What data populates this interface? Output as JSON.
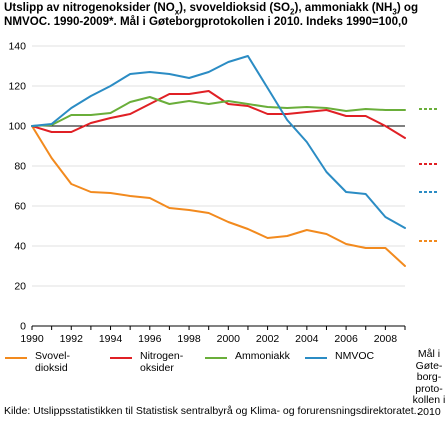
{
  "title": {
    "part1": "Utslipp av nitrogenoksider (NO",
    "sub1": "x",
    "part2": "), svoveldioksid (SO",
    "sub2": "2",
    "part3": "), ammoniakk (NH",
    "sub3": "3",
    "part4": ") og NMVOC. 1990-2009*. Mål i Gøteborgprotokollen i 2010. Indeks 1990=100,0"
  },
  "source": "Kilde: Utslippsstatistikken til Statistisk sentralbyrå og Klima- og forurensningsdirektoratet..",
  "target_column_label": "Mål i\nGøte-\nborg-\nproto-\nkollen i\n2010",
  "chart_data": {
    "type": "line",
    "x": [
      1990,
      1991,
      1992,
      1993,
      1994,
      1995,
      1996,
      1997,
      1998,
      1999,
      2000,
      2001,
      2002,
      2003,
      2004,
      2005,
      2006,
      2007,
      2008,
      2009
    ],
    "x_ticks": [
      "1990",
      "1992",
      "1994",
      "1996",
      "1998",
      "2000",
      "2002",
      "2004",
      "2006",
      "2008"
    ],
    "y_ticks": [
      "0",
      "20",
      "40",
      "60",
      "80",
      "100",
      "120",
      "140"
    ],
    "ylim": [
      0,
      140
    ],
    "reference_line": 100,
    "series": [
      {
        "name": "Svovel-\ndioksid",
        "color": "#f28a1e",
        "values": [
          100,
          84,
          71,
          67,
          66.5,
          65,
          64,
          59,
          58,
          56.5,
          52,
          48.5,
          44,
          45,
          48,
          46,
          41,
          39,
          39,
          30
        ],
        "target": 42.5
      },
      {
        "name": "Nitrogen-\noksider",
        "color": "#e02025",
        "values": [
          100,
          97,
          97,
          101.5,
          104,
          106,
          111,
          116,
          116,
          117.5,
          111,
          110,
          106,
          106,
          107,
          108,
          105,
          105,
          100,
          94
        ],
        "target": 81
      },
      {
        "name": "Ammoniakk",
        "color": "#6aae3a",
        "values": [
          100,
          100.5,
          105.5,
          105.5,
          106.5,
          112,
          114.5,
          111,
          112.5,
          111,
          112.5,
          111,
          109.5,
          109,
          109.5,
          109,
          107.5,
          108.5,
          108,
          108
        ],
        "target": 108.5
      },
      {
        "name": "NMVOC",
        "color": "#2b8cc4",
        "values": [
          100,
          101,
          109,
          115,
          120,
          126,
          127,
          126,
          124,
          127,
          132,
          135,
          119,
          103,
          92,
          77,
          67,
          66,
          54.5,
          49
        ],
        "target": 67
      }
    ]
  }
}
